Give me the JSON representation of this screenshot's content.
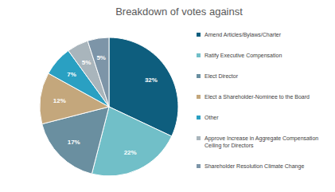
{
  "chart_data": {
    "type": "pie",
    "title": "Breakdown of votes against",
    "categories": [
      "Amend Articles/Bylaws/Charter",
      "Ratify Executive Compensation",
      "Elect Director",
      "Elect a Shareholder-Nominee to the Board",
      "Other",
      "Approve Increase in Aggregate Compensation Ceiling for Directors",
      "Shareholder Resolution Climate Change"
    ],
    "values": [
      32,
      22,
      17,
      12,
      7,
      5,
      5
    ],
    "value_labels": [
      "32%",
      "22%",
      "17%",
      "12%",
      "7%",
      "5%",
      "5%"
    ],
    "colors": [
      "#0e5e7e",
      "#71bfc8",
      "#6a8fa0",
      "#c4a77c",
      "#2aa0c2",
      "#a9b5bc",
      "#7d95a8"
    ],
    "data_labels": true,
    "legend": "right"
  }
}
